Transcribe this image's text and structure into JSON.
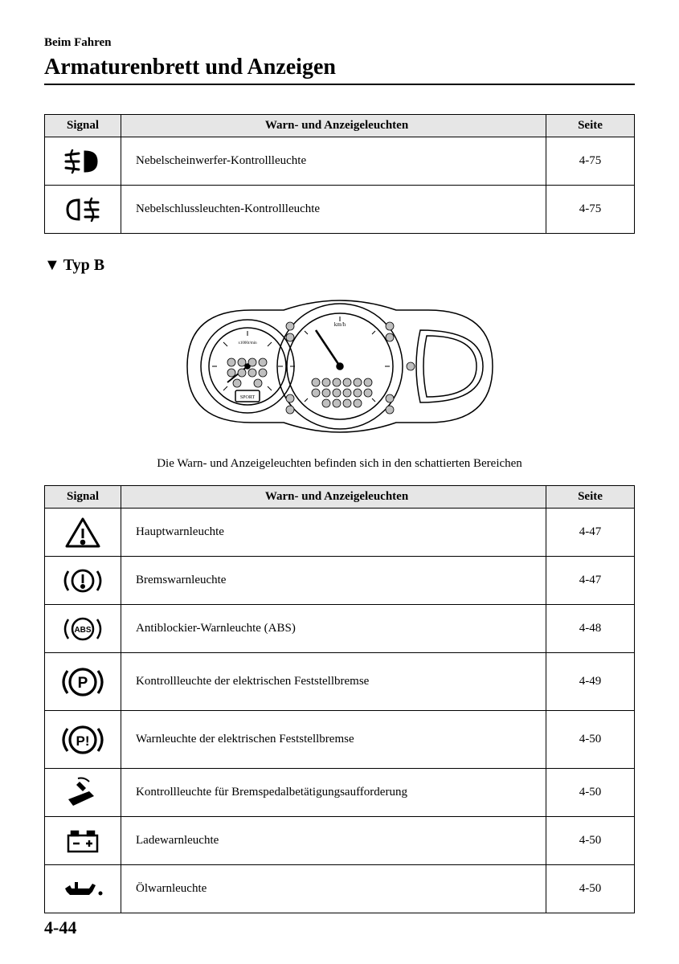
{
  "header": {
    "section": "Beim Fahren",
    "title": "Armaturenbrett und Anzeigen"
  },
  "table1": {
    "headers": {
      "signal": "Signal",
      "desc": "Warn- und Anzeigeleuchten",
      "page": "Seite"
    },
    "rows": [
      {
        "desc": "Nebelscheinwerfer-Kontrollleuchte",
        "page": "4-75",
        "icon": "fog-front"
      },
      {
        "desc": "Nebelschlussleuchten-Kontrollleuchte",
        "page": "4-75",
        "icon": "fog-rear"
      }
    ]
  },
  "section_label": "Typ B",
  "caption": "Die Warn- und Anzeigeleuchten befinden sich in den schattierten Bereichen",
  "table2": {
    "headers": {
      "signal": "Signal",
      "desc": "Warn- und Anzeigeleuchten",
      "page": "Seite"
    },
    "rows": [
      {
        "desc": "Hauptwarnleuchte",
        "page": "4-47",
        "icon": "triangle-excl"
      },
      {
        "desc": "Bremswarnleuchte",
        "page": "4-47",
        "icon": "circle-excl-paren"
      },
      {
        "desc": "Antiblockier-Warnleuchte (ABS)",
        "page": "4-48",
        "icon": "abs-paren"
      },
      {
        "desc": "Kontrollleuchte der elektrischen Feststellbremse",
        "page": "4-49",
        "icon": "p-paren",
        "tall": true
      },
      {
        "desc": "Warnleuchte der elektrischen Feststellbremse",
        "page": "4-50",
        "icon": "p-excl-paren",
        "tall": true
      },
      {
        "desc": "Kontrollleuchte für Bremspedalbetätigungsaufforderung",
        "page": "4-50",
        "icon": "brake-pedal"
      },
      {
        "desc": "Ladewarnleuchte",
        "page": "4-50",
        "icon": "battery"
      },
      {
        "desc": "Ölwarnleuchte",
        "page": "4-50",
        "icon": "oil"
      }
    ]
  },
  "page_number": "4-44",
  "colors": {
    "header_bg": "#e6e6e6",
    "stroke": "#000000",
    "dot_fill": "#bfbfbf"
  }
}
